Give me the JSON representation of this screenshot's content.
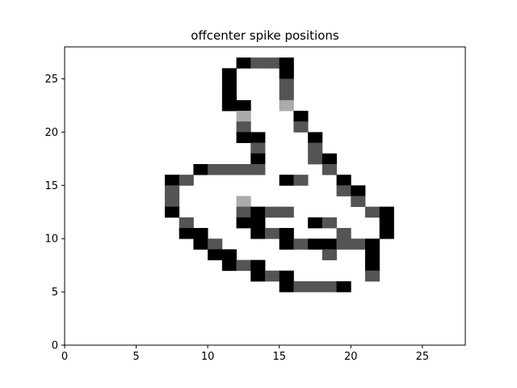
{
  "chart_data": {
    "type": "heatmap",
    "title": "offcenter spike positions",
    "xlabel": "",
    "ylabel": "",
    "xlim": [
      0,
      28
    ],
    "ylim": [
      0,
      28
    ],
    "x_ticks": [
      0,
      5,
      10,
      15,
      20,
      25
    ],
    "y_ticks": [
      0,
      5,
      10,
      15,
      20,
      25
    ],
    "grid": false,
    "colormap": "grayscale (1 = black, 0 = white)",
    "cell_values_note": "rows listed top to bottom; row 0 spans y=27..28, row 27 spans y=0..1; columns span x=0..28",
    "rows": [
      [
        0,
        0,
        0,
        0,
        0,
        0,
        0,
        0,
        0,
        0,
        0,
        0,
        0,
        0,
        0,
        0,
        0,
        0,
        0,
        0,
        0,
        0,
        0,
        0,
        0,
        0,
        0,
        0
      ],
      [
        0,
        0,
        0,
        0,
        0,
        0,
        0,
        0,
        0,
        0,
        0,
        0,
        1,
        0.67,
        0.67,
        1,
        0,
        0,
        0,
        0,
        0,
        0,
        0,
        0,
        0,
        0,
        0,
        0
      ],
      [
        0,
        0,
        0,
        0,
        0,
        0,
        0,
        0,
        0,
        0,
        0,
        1,
        0,
        0,
        0,
        1,
        0,
        0,
        0,
        0,
        0,
        0,
        0,
        0,
        0,
        0,
        0,
        0
      ],
      [
        0,
        0,
        0,
        0,
        0,
        0,
        0,
        0,
        0,
        0,
        0,
        1,
        0,
        0,
        0,
        0.67,
        0,
        0,
        0,
        0,
        0,
        0,
        0,
        0,
        0,
        0,
        0,
        0
      ],
      [
        0,
        0,
        0,
        0,
        0,
        0,
        0,
        0,
        0,
        0,
        0,
        1,
        0,
        0,
        0,
        0.67,
        0,
        0,
        0,
        0,
        0,
        0,
        0,
        0,
        0,
        0,
        0,
        0
      ],
      [
        0,
        0,
        0,
        0,
        0,
        0,
        0,
        0,
        0,
        0,
        0,
        1,
        1,
        0,
        0,
        0.33,
        0,
        0,
        0,
        0,
        0,
        0,
        0,
        0,
        0,
        0,
        0,
        0
      ],
      [
        0,
        0,
        0,
        0,
        0,
        0,
        0,
        0,
        0,
        0,
        0,
        0,
        0.33,
        0,
        0,
        0,
        1,
        0,
        0,
        0,
        0,
        0,
        0,
        0,
        0,
        0,
        0,
        0
      ],
      [
        0,
        0,
        0,
        0,
        0,
        0,
        0,
        0,
        0,
        0,
        0,
        0,
        0.67,
        0,
        0,
        0,
        0.67,
        0,
        0,
        0,
        0,
        0,
        0,
        0,
        0,
        0,
        0,
        0
      ],
      [
        0,
        0,
        0,
        0,
        0,
        0,
        0,
        0,
        0,
        0,
        0,
        0,
        1,
        1,
        0,
        0,
        0,
        1,
        0,
        0,
        0,
        0,
        0,
        0,
        0,
        0,
        0,
        0
      ],
      [
        0,
        0,
        0,
        0,
        0,
        0,
        0,
        0,
        0,
        0,
        0,
        0,
        0,
        0.67,
        0,
        0,
        0,
        0.67,
        0,
        0,
        0,
        0,
        0,
        0,
        0,
        0,
        0,
        0
      ],
      [
        0,
        0,
        0,
        0,
        0,
        0,
        0,
        0,
        0,
        0,
        0,
        0,
        0,
        1,
        0,
        0,
        0,
        0.67,
        1,
        0,
        0,
        0,
        0,
        0,
        0,
        0,
        0,
        0
      ],
      [
        0,
        0,
        0,
        0,
        0,
        0,
        0,
        0,
        0,
        1,
        0.67,
        0.67,
        0.67,
        0.67,
        0,
        0,
        0,
        0,
        0.67,
        0,
        0,
        0,
        0,
        0,
        0,
        0,
        0,
        0
      ],
      [
        0,
        0,
        0,
        0,
        0,
        0,
        0,
        1,
        0.67,
        0,
        0,
        0,
        0,
        0,
        0,
        1,
        0.67,
        0,
        0,
        1,
        0,
        0,
        0,
        0,
        0,
        0,
        0,
        0
      ],
      [
        0,
        0,
        0,
        0,
        0,
        0,
        0,
        0.67,
        0,
        0,
        0,
        0,
        0,
        0,
        0,
        0,
        0,
        0,
        0,
        0.67,
        1,
        0,
        0,
        0,
        0,
        0,
        0,
        0
      ],
      [
        0,
        0,
        0,
        0,
        0,
        0,
        0,
        0.67,
        0,
        0,
        0,
        0,
        0.33,
        0,
        0,
        0,
        0,
        0,
        0,
        0,
        0.67,
        0,
        0,
        0,
        0,
        0,
        0,
        0
      ],
      [
        0,
        0,
        0,
        0,
        0,
        0,
        0,
        1,
        0,
        0,
        0,
        0,
        0.67,
        1,
        0.67,
        0.67,
        0,
        0,
        0,
        0,
        0,
        0.67,
        1,
        0,
        0,
        0,
        0,
        0
      ],
      [
        0,
        0,
        0,
        0,
        0,
        0,
        0,
        0,
        0.67,
        0,
        0,
        0,
        1,
        1,
        0,
        0,
        0,
        1,
        0.67,
        0,
        0,
        0,
        1,
        0,
        0,
        0,
        0,
        0
      ],
      [
        0,
        0,
        0,
        0,
        0,
        0,
        0,
        0,
        1,
        1,
        0,
        0,
        0,
        1,
        0.67,
        1,
        0,
        0,
        0,
        0.67,
        0,
        0,
        1,
        0,
        0,
        0,
        0,
        0
      ],
      [
        0,
        0,
        0,
        0,
        0,
        0,
        0,
        0,
        0,
        1,
        0.67,
        0,
        0,
        0,
        0,
        1,
        0.67,
        1,
        1,
        0.67,
        0.67,
        1,
        0,
        0,
        0,
        0,
        0,
        0
      ],
      [
        0,
        0,
        0,
        0,
        0,
        0,
        0,
        0,
        0,
        0,
        1,
        1,
        0,
        0,
        0,
        0,
        0,
        0,
        0.67,
        0,
        0,
        1,
        0,
        0,
        0,
        0,
        0,
        0
      ],
      [
        0,
        0,
        0,
        0,
        0,
        0,
        0,
        0,
        0,
        0,
        0,
        1,
        0.67,
        1,
        0,
        0,
        0,
        0,
        0,
        0,
        0,
        1,
        0,
        0,
        0,
        0,
        0,
        0
      ],
      [
        0,
        0,
        0,
        0,
        0,
        0,
        0,
        0,
        0,
        0,
        0,
        0,
        0,
        1,
        0.67,
        1,
        0,
        0,
        0,
        0,
        0,
        0.67,
        0,
        0,
        0,
        0,
        0,
        0
      ],
      [
        0,
        0,
        0,
        0,
        0,
        0,
        0,
        0,
        0,
        0,
        0,
        0,
        0,
        0,
        0,
        1,
        0.67,
        0.67,
        0.67,
        1,
        0,
        0,
        0,
        0,
        0,
        0,
        0,
        0
      ],
      [
        0,
        0,
        0,
        0,
        0,
        0,
        0,
        0,
        0,
        0,
        0,
        0,
        0,
        0,
        0,
        0,
        0,
        0,
        0,
        0,
        0,
        0,
        0,
        0,
        0,
        0,
        0,
        0
      ],
      [
        0,
        0,
        0,
        0,
        0,
        0,
        0,
        0,
        0,
        0,
        0,
        0,
        0,
        0,
        0,
        0,
        0,
        0,
        0,
        0,
        0,
        0,
        0,
        0,
        0,
        0,
        0,
        0
      ],
      [
        0,
        0,
        0,
        0,
        0,
        0,
        0,
        0,
        0,
        0,
        0,
        0,
        0,
        0,
        0,
        0,
        0,
        0,
        0,
        0,
        0,
        0,
        0,
        0,
        0,
        0,
        0,
        0
      ],
      [
        0,
        0,
        0,
        0,
        0,
        0,
        0,
        0,
        0,
        0,
        0,
        0,
        0,
        0,
        0,
        0,
        0,
        0,
        0,
        0,
        0,
        0,
        0,
        0,
        0,
        0,
        0,
        0
      ],
      [
        0,
        0,
        0,
        0,
        0,
        0,
        0,
        0,
        0,
        0,
        0,
        0,
        0,
        0,
        0,
        0,
        0,
        0,
        0,
        0,
        0,
        0,
        0,
        0,
        0,
        0,
        0,
        0
      ]
    ]
  }
}
